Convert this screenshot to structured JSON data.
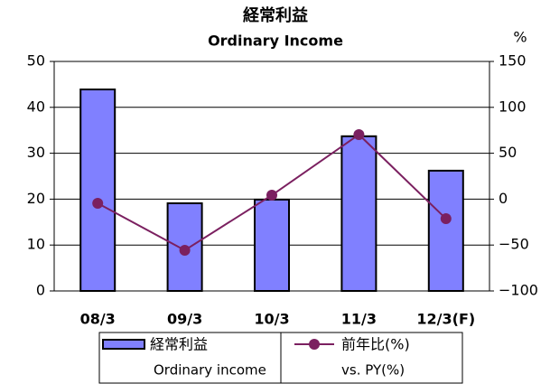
{
  "chart_data": {
    "type": "bar_line",
    "title": "経常利益",
    "subtitle": "Ordinary Income",
    "y2_unit": "%",
    "categories": [
      "08/3",
      "09/3",
      "10/3",
      "11/3",
      "12/3(F)"
    ],
    "series": [
      {
        "name": "経常利益",
        "name_en": "Ordinary income",
        "type": "bar",
        "color": "#8080ff",
        "values": [
          43.9,
          19.1,
          19.9,
          33.7,
          26.2
        ]
      },
      {
        "name": "前年比(%)",
        "name_en": "vs. PY(%)",
        "type": "line",
        "axis": "y2",
        "color": "#7b2060",
        "values": [
          -4.5,
          -55.7,
          4.3,
          70.3,
          -21.3
        ]
      }
    ],
    "ylim": [
      0,
      50
    ],
    "yticks": [
      0,
      10,
      20,
      30,
      40,
      50
    ],
    "y2lim": [
      -100,
      150
    ],
    "y2ticks": [
      {
        "value": -100,
        "label": "−100"
      },
      {
        "value": -50,
        "label": "−50"
      },
      0,
      50,
      100,
      150
    ],
    "grid": true
  }
}
